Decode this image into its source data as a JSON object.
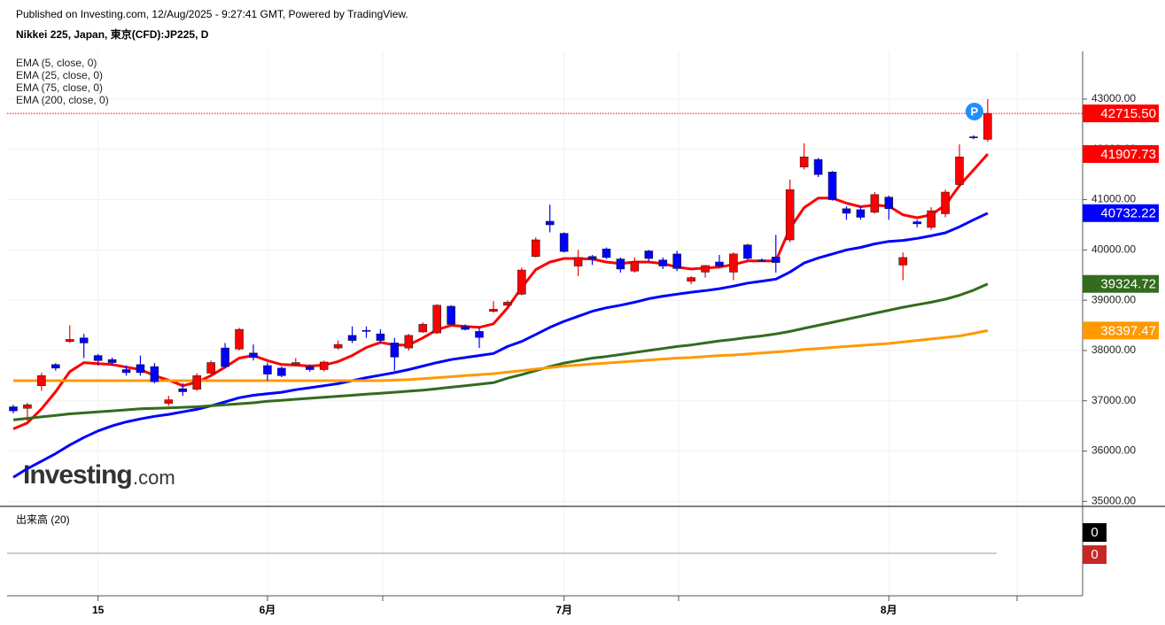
{
  "header": {
    "published": "Published on Investing.com, 12/Aug/2025 - 9:27:41 GMT, Powered by TradingView.",
    "symbol": "Nikkei 225, Japan, 東京(CFD):JP225, D"
  },
  "logo": {
    "brand": "Investing",
    "suffix": ".com"
  },
  "marker": "P",
  "chart_data": {
    "type": "candlestick",
    "ylim": [
      34900,
      43950
    ],
    "yticks": [
      {
        "value": 35000,
        "label": "35000.00"
      },
      {
        "value": 36000,
        "label": "36000.00"
      },
      {
        "value": 37000,
        "label": "37000.00"
      },
      {
        "value": 38000,
        "label": "38000.00"
      },
      {
        "value": 39000,
        "label": "39000.00"
      },
      {
        "value": 40000,
        "label": "40000.00"
      },
      {
        "value": 41000,
        "label": "41000.00"
      },
      {
        "value": 42000,
        "label": "42000.00"
      },
      {
        "value": 43000,
        "label": "43000.00"
      }
    ],
    "xticks": [
      {
        "value": 6,
        "label": "15"
      },
      {
        "value": 18,
        "label": "6月"
      },
      {
        "value": 39,
        "label": "7月"
      },
      {
        "value": 62,
        "label": "8月"
      }
    ],
    "grid": true,
    "candles": {
      "up_color": "#ff0000",
      "down_color": "#0000ff",
      "last_close_label": "42715.50",
      "open": [
        36880,
        36850,
        37300,
        37720,
        38180,
        38250,
        37900,
        37820,
        37620,
        37720,
        37680,
        36950,
        37240,
        37230,
        37550,
        38050,
        38030,
        37950,
        37700,
        37650,
        37720,
        37680,
        37620,
        38050,
        38300,
        38400,
        38330,
        38150,
        38050,
        38370,
        38350,
        38880,
        38480,
        38380,
        38780,
        38900,
        39120,
        39870,
        40570,
        40330,
        39680,
        39870,
        40020,
        39820,
        39580,
        39980,
        39800,
        39920,
        39380,
        39560,
        39760,
        39560,
        40100,
        39800,
        39860,
        40200,
        41650,
        41800,
        41550,
        40820,
        40800,
        40750,
        41050,
        39700,
        40560,
        40450,
        40720,
        41300,
        42250,
        42200
      ],
      "high": [
        36920,
        36960,
        37560,
        37750,
        38500,
        38330,
        37930,
        37860,
        37700,
        37900,
        37750,
        37100,
        37350,
        37550,
        37800,
        38150,
        38450,
        38120,
        37760,
        37680,
        37850,
        37720,
        37800,
        38200,
        38480,
        38480,
        38420,
        38250,
        38330,
        38560,
        38920,
        38900,
        38520,
        38450,
        38980,
        39000,
        39650,
        40250,
        40900,
        40350,
        40000,
        39900,
        40050,
        39850,
        39850,
        40000,
        39850,
        39980,
        39480,
        39700,
        39900,
        39950,
        40120,
        39830,
        40300,
        41400,
        42120,
        41830,
        41570,
        40870,
        40870,
        41150,
        41080,
        39950,
        40600,
        40850,
        41200,
        42100,
        42280,
        43000
      ],
      "low": [
        36750,
        36600,
        37200,
        37600,
        38150,
        37850,
        37700,
        37700,
        37500,
        37500,
        37350,
        36900,
        37100,
        37200,
        37500,
        37650,
        38000,
        37800,
        37400,
        37470,
        37680,
        37580,
        37580,
        38020,
        38150,
        38250,
        38150,
        37600,
        38000,
        38350,
        38330,
        38500,
        38400,
        38050,
        38750,
        38850,
        39100,
        39850,
        40350,
        39950,
        39480,
        39700,
        39820,
        39550,
        39550,
        39780,
        39620,
        39580,
        39320,
        39450,
        39650,
        39400,
        39800,
        39760,
        39550,
        40150,
        41600,
        41450,
        40980,
        40600,
        40600,
        40720,
        40600,
        39400,
        40450,
        40400,
        40650,
        41250,
        42200,
        42150
      ],
      "close": [
        36800,
        36920,
        37500,
        37650,
        38220,
        38150,
        37800,
        37760,
        37560,
        37560,
        37380,
        37020,
        37180,
        37500,
        37760,
        37680,
        38420,
        37860,
        37530,
        37500,
        37760,
        37620,
        37770,
        38120,
        38200,
        38380,
        38200,
        37870,
        38300,
        38520,
        38900,
        38520,
        38420,
        38260,
        38820,
        38960,
        39600,
        40200,
        40500,
        39970,
        39850,
        39820,
        39850,
        39620,
        39770,
        39830,
        39680,
        39630,
        39450,
        39690,
        39680,
        39920,
        39830,
        39780,
        39750,
        41200,
        41850,
        41500,
        41000,
        40730,
        40650,
        41100,
        40820,
        39850,
        40520,
        40780,
        41150,
        41850,
        42230,
        42715.5
      ]
    },
    "series": [
      {
        "name": "EMA (5, close, 0)",
        "color": "#ff0000",
        "values": [
          36440,
          36560,
          36840,
          37180,
          37580,
          37760,
          37740,
          37720,
          37670,
          37620,
          37500,
          37410,
          37300,
          37370,
          37500,
          37670,
          37850,
          37900,
          37800,
          37720,
          37710,
          37690,
          37710,
          37780,
          37900,
          38060,
          38160,
          38110,
          38110,
          38250,
          38410,
          38500,
          38480,
          38460,
          38530,
          38850,
          39250,
          39610,
          39760,
          39830,
          39830,
          39820,
          39760,
          39730,
          39760,
          39760,
          39730,
          39660,
          39620,
          39640,
          39660,
          39710,
          39780,
          39780,
          39780,
          40430,
          40840,
          41030,
          41030,
          40930,
          40860,
          40890,
          40870,
          40700,
          40640,
          40700,
          40890,
          41280,
          41590,
          41907.73
        ]
      },
      {
        "name": "EMA (25, close, 0)",
        "color": "#0000ff",
        "values": [
          35480,
          35650,
          35800,
          35950,
          36120,
          36270,
          36400,
          36500,
          36580,
          36640,
          36690,
          36730,
          36780,
          36830,
          36900,
          36980,
          37060,
          37110,
          37140,
          37170,
          37220,
          37260,
          37300,
          37340,
          37400,
          37460,
          37510,
          37560,
          37620,
          37690,
          37760,
          37820,
          37860,
          37900,
          37940,
          38080,
          38180,
          38320,
          38460,
          38580,
          38680,
          38780,
          38850,
          38900,
          38960,
          39030,
          39080,
          39120,
          39160,
          39190,
          39230,
          39280,
          39340,
          39380,
          39420,
          39560,
          39740,
          39840,
          39920,
          40000,
          40050,
          40120,
          40170,
          40190,
          40230,
          40280,
          40340,
          40460,
          40600,
          40732.22
        ]
      },
      {
        "name": "EMA (75, close, 0)",
        "color": "#336b1f",
        "values": [
          36620,
          36650,
          36680,
          36710,
          36740,
          36760,
          36780,
          36800,
          36820,
          36840,
          36850,
          36860,
          36870,
          36880,
          36900,
          36920,
          36940,
          36960,
          36990,
          37010,
          37030,
          37050,
          37070,
          37090,
          37110,
          37130,
          37150,
          37170,
          37190,
          37210,
          37240,
          37270,
          37300,
          37330,
          37360,
          37450,
          37520,
          37600,
          37680,
          37750,
          37800,
          37850,
          37880,
          37920,
          37960,
          38000,
          38040,
          38080,
          38110,
          38150,
          38190,
          38220,
          38260,
          38290,
          38330,
          38380,
          38440,
          38500,
          38560,
          38620,
          38680,
          38740,
          38800,
          38860,
          38910,
          38960,
          39020,
          39100,
          39200,
          39324.72
        ]
      },
      {
        "name": "EMA (200, close, 0)",
        "color": "#ff9900",
        "values": [
          37400,
          37400,
          37400,
          37400,
          37400,
          37400,
          37400,
          37400,
          37400,
          37400,
          37400,
          37400,
          37400,
          37400,
          37400,
          37400,
          37400,
          37400,
          37400,
          37400,
          37400,
          37400,
          37400,
          37400,
          37400,
          37400,
          37400,
          37410,
          37420,
          37440,
          37460,
          37480,
          37500,
          37520,
          37540,
          37570,
          37600,
          37630,
          37660,
          37690,
          37710,
          37730,
          37750,
          37770,
          37790,
          37810,
          37830,
          37850,
          37860,
          37880,
          37900,
          37910,
          37930,
          37950,
          37970,
          37990,
          38020,
          38040,
          38060,
          38080,
          38100,
          38120,
          38140,
          38170,
          38200,
          38230,
          38260,
          38290,
          38340,
          38397.47
        ]
      }
    ],
    "volume": {
      "title": "出来高 (20)",
      "value": 0,
      "value_color": "#000000",
      "ma": 0,
      "ma_color": "#c62828"
    }
  }
}
